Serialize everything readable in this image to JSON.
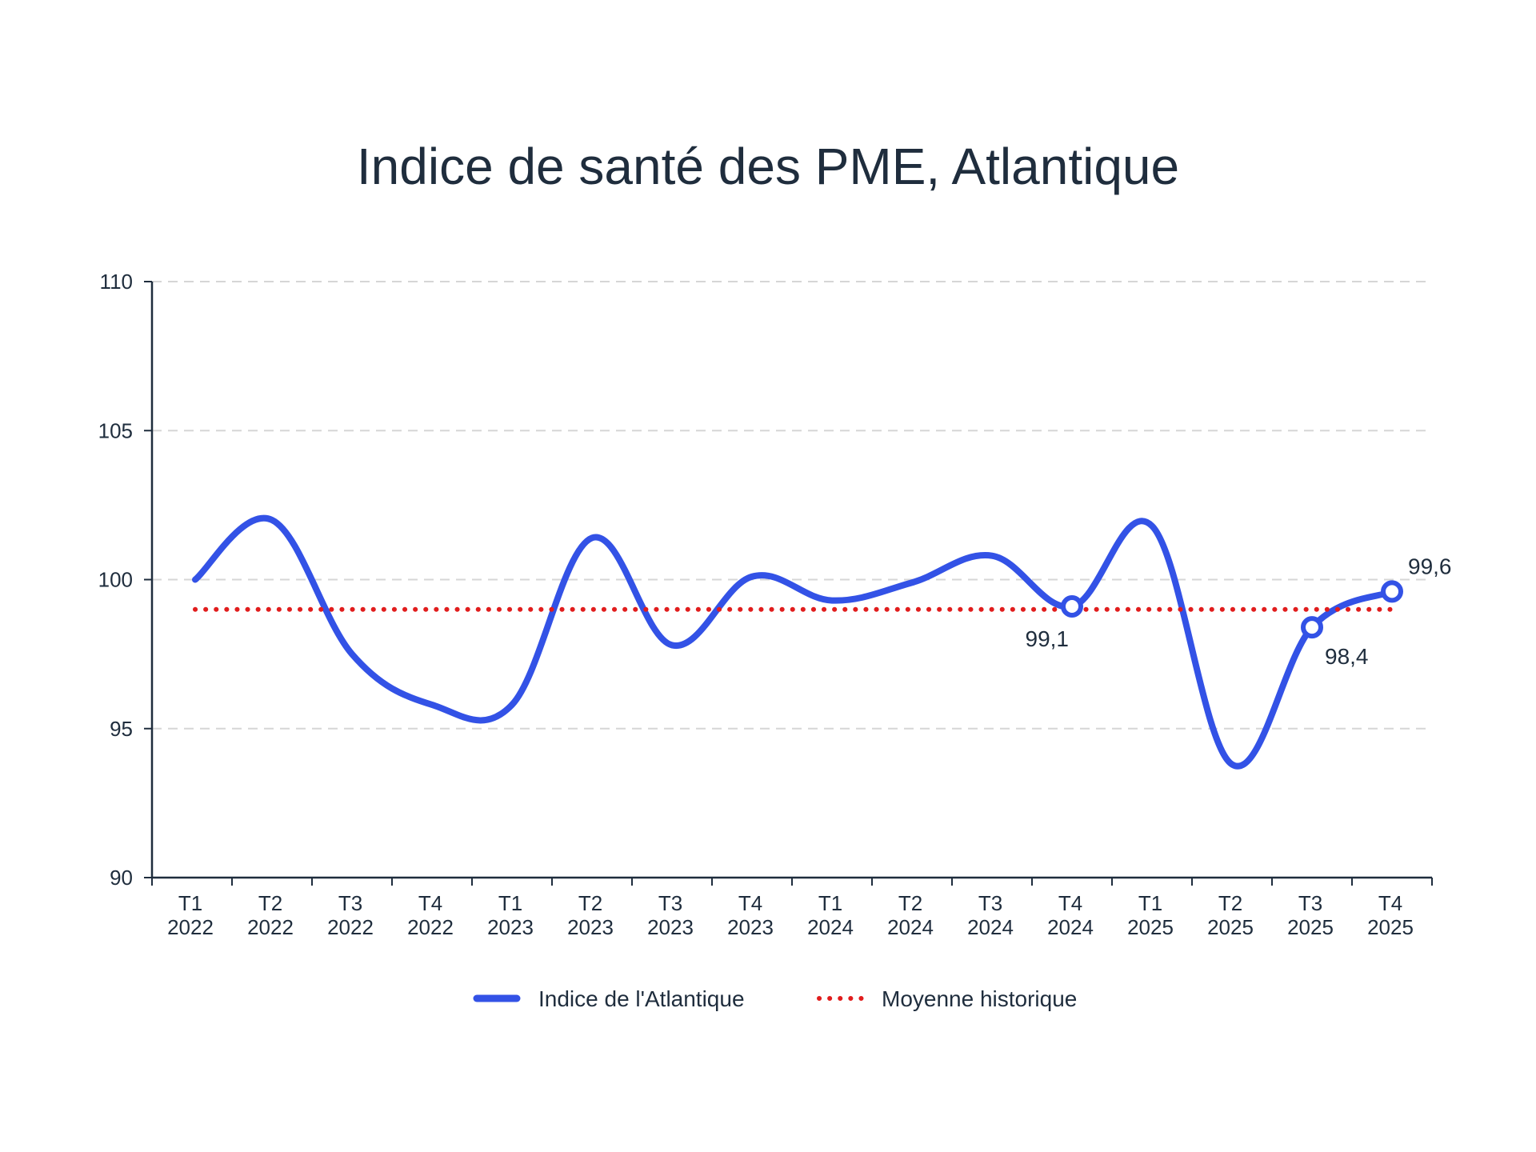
{
  "chart_data": {
    "type": "line",
    "title": "Indice de santé des PME, Atlantique",
    "xlabel": "",
    "ylabel": "",
    "ylim": [
      90,
      110
    ],
    "y_ticks": [
      "110",
      "105",
      "100",
      "95",
      "90"
    ],
    "y_tick_values": [
      110,
      105,
      100,
      95,
      90
    ],
    "grid": true,
    "legend_position": "bottom",
    "categories": [
      {
        "quarter": "T1",
        "year": "2022"
      },
      {
        "quarter": "T2",
        "year": "2022"
      },
      {
        "quarter": "T3",
        "year": "2022"
      },
      {
        "quarter": "T4",
        "year": "2022"
      },
      {
        "quarter": "T1",
        "year": "2023"
      },
      {
        "quarter": "T2",
        "year": "2023"
      },
      {
        "quarter": "T3",
        "year": "2023"
      },
      {
        "quarter": "T4",
        "year": "2023"
      },
      {
        "quarter": "T1",
        "year": "2024"
      },
      {
        "quarter": "T2",
        "year": "2024"
      },
      {
        "quarter": "T3",
        "year": "2024"
      },
      {
        "quarter": "T4",
        "year": "2024"
      },
      {
        "quarter": "T1",
        "year": "2025"
      },
      {
        "quarter": "T2",
        "year": "2025"
      },
      {
        "quarter": "T3",
        "year": "2025"
      },
      {
        "quarter": "T4",
        "year": "2025"
      }
    ],
    "series": [
      {
        "name": "Indice de l'Atlantique",
        "style": "solid",
        "color": "#3352e6",
        "values": [
          100.0,
          102.0,
          97.5,
          95.8,
          95.8,
          101.4,
          97.8,
          100.1,
          99.3,
          99.9,
          100.8,
          99.1,
          101.8,
          93.8,
          98.4,
          99.6
        ]
      },
      {
        "name": "Moyenne historique",
        "style": "dotted",
        "color": "#e11d1d",
        "values": [
          99.0,
          99.0,
          99.0,
          99.0,
          99.0,
          99.0,
          99.0,
          99.0,
          99.0,
          99.0,
          99.0,
          99.0,
          99.0,
          99.0,
          99.0,
          99.0
        ]
      }
    ],
    "annotations": [
      {
        "index": 11,
        "text": "99,1",
        "placement": "below-left"
      },
      {
        "index": 14,
        "text": "98,4",
        "placement": "below-right"
      },
      {
        "index": 15,
        "text": "99,6",
        "placement": "above-right"
      }
    ],
    "colors": {
      "axis": "#1f2d3d",
      "grid": "#d6d6d6",
      "text": "#1f2d3d"
    }
  }
}
